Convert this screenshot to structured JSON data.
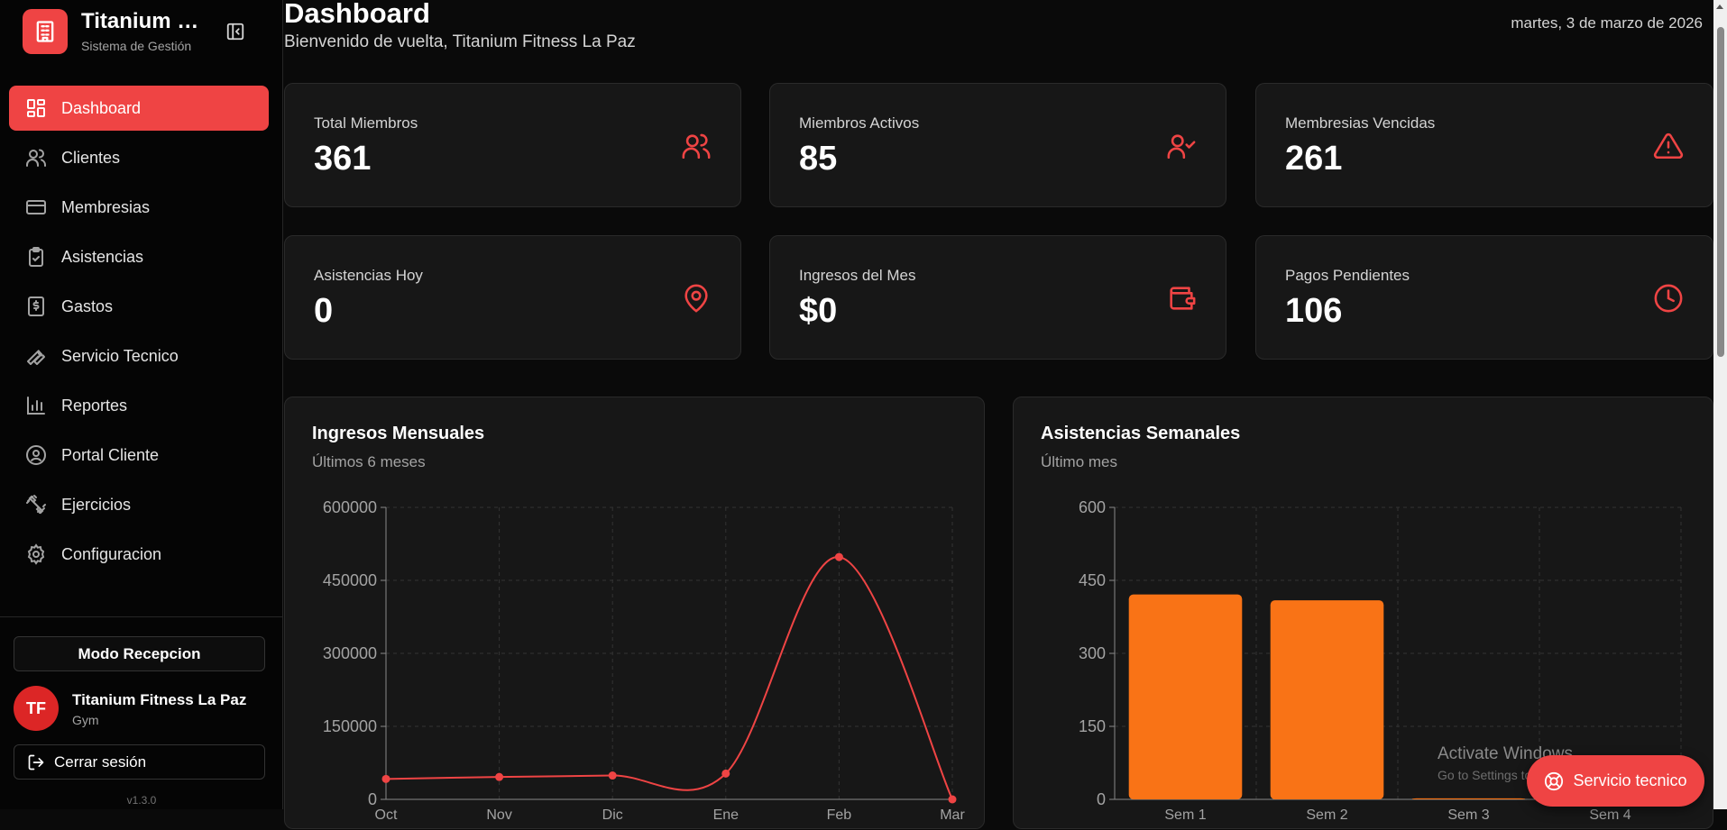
{
  "sidebar": {
    "brand_title": "Titanium Fitness",
    "brand_subtitle": "Sistema de Gestión",
    "items": [
      {
        "label": "Dashboard",
        "icon": "dashboard-icon"
      },
      {
        "label": "Clientes",
        "icon": "users-icon"
      },
      {
        "label": "Membresias",
        "icon": "card-icon"
      },
      {
        "label": "Asistencias",
        "icon": "clipboard-check-icon"
      },
      {
        "label": "Gastos",
        "icon": "receipt-dollar-icon"
      },
      {
        "label": "Servicio Tecnico",
        "icon": "wrench-icon"
      },
      {
        "label": "Reportes",
        "icon": "bar-chart-icon"
      },
      {
        "label": "Portal Cliente",
        "icon": "user-circle-icon"
      },
      {
        "label": "Ejercicios",
        "icon": "dumbbell-icon"
      },
      {
        "label": "Configuracion",
        "icon": "gear-icon"
      }
    ],
    "reception_label": "Modo Recepcion",
    "user": {
      "initials": "TF",
      "name": "Titanium Fitness La Paz",
      "role": "Gym"
    },
    "logout_label": "Cerrar sesión",
    "version": "v1.3.0"
  },
  "header": {
    "title": "Dashboard",
    "subtitle": "Bienvenido de vuelta, Titanium Fitness La Paz",
    "date": "martes, 3 de marzo de 2026"
  },
  "stats": [
    {
      "label": "Total Miembros",
      "value": "361",
      "icon": "users-icon"
    },
    {
      "label": "Miembros Activos",
      "value": "85",
      "icon": "user-check-icon"
    },
    {
      "label": "Membresias Vencidas",
      "value": "261",
      "icon": "warning-icon"
    },
    {
      "label": "Asistencias Hoy",
      "value": "0",
      "icon": "map-pin-icon"
    },
    {
      "label": "Ingresos del Mes",
      "value": "$0",
      "icon": "wallet-icon"
    },
    {
      "label": "Pagos Pendientes",
      "value": "106",
      "icon": "clock-icon"
    }
  ],
  "charts": {
    "income": {
      "title": "Ingresos Mensuales",
      "subtitle": "Últimos 6 meses"
    },
    "attendance": {
      "title": "Asistencias Semanales",
      "subtitle": "Último mes"
    }
  },
  "chart_data": [
    {
      "type": "line",
      "title": "Ingresos Mensuales",
      "subtitle": "Últimos 6 meses",
      "categories": [
        "Oct",
        "Nov",
        "Dic",
        "Ene",
        "Feb",
        "Mar"
      ],
      "values": [
        42000,
        46000,
        49000,
        53000,
        498000,
        0
      ],
      "ylim": [
        0,
        600000
      ],
      "yticks": [
        "0",
        "150000",
        "300000",
        "450000",
        "600000"
      ],
      "color": "#ef4444",
      "grid": true
    },
    {
      "type": "bar",
      "title": "Asistencias Semanales",
      "subtitle": "Último mes",
      "categories": [
        "Sem 1",
        "Sem 2",
        "Sem 3",
        "Sem 4"
      ],
      "values": [
        421,
        409,
        2,
        0
      ],
      "ylim": [
        0,
        600
      ],
      "yticks": [
        "0",
        "150",
        "300",
        "450",
        "600"
      ],
      "color": "#f97316",
      "grid": true
    }
  ],
  "watermark": {
    "line1": "Activate Windows",
    "line2": "Go to Settings to activate Windows."
  },
  "fab": {
    "label": "Servicio tecnico"
  },
  "colors": {
    "accent": "#ef4444",
    "bar": "#f97316",
    "card": "#171717",
    "background": "#0a0a0a"
  }
}
